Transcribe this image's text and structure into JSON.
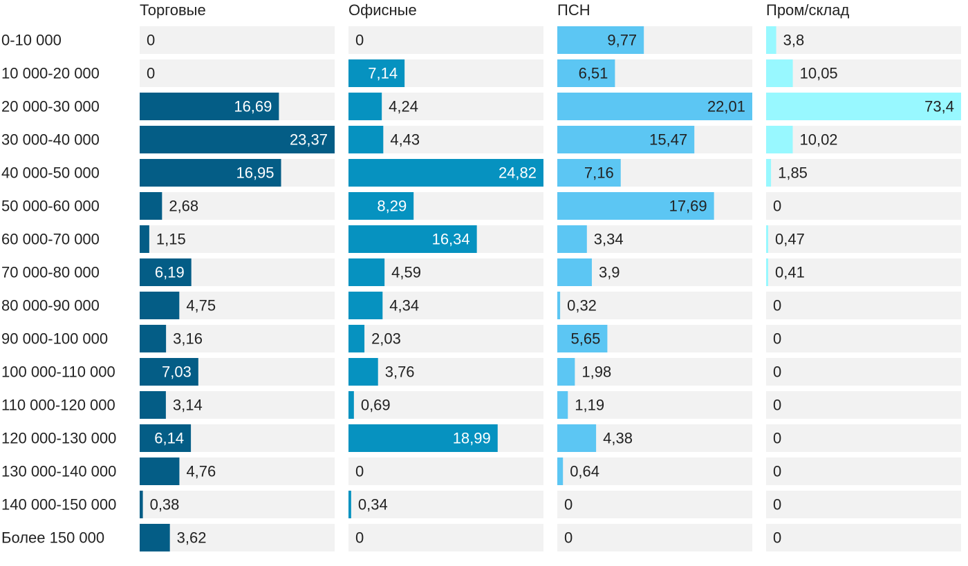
{
  "chart_data": {
    "type": "bar",
    "orientation": "horizontal",
    "layout": "small-multiples",
    "categories": [
      "0-10 000",
      "10 000-20 000",
      "20 000-30 000",
      "30 000-40 000",
      "40 000-50 000",
      "50 000-60 000",
      "60 000-70 000",
      "70 000-80 000",
      "80 000-90 000",
      "90 000-100 000",
      "100 000-110 000",
      "110 000-120 000",
      "120 000-130 000",
      "130 000-140 000",
      "140 000-150 000",
      "Более 150 000"
    ],
    "series": [
      {
        "name": "Торговые",
        "color": "#045d86",
        "value_labels": [
          "0",
          "0",
          "16,69",
          "23,37",
          "16,95",
          "2,68",
          "1,15",
          "6,19",
          "4,75",
          "3,16",
          "7,03",
          "3,14",
          "6,14",
          "4,76",
          "0,38",
          "3,62"
        ],
        "values": [
          0,
          0,
          16.69,
          23.37,
          16.95,
          2.68,
          1.15,
          6.19,
          4.75,
          3.16,
          7.03,
          3.14,
          6.14,
          4.76,
          0.38,
          3.62
        ],
        "max": 23.37
      },
      {
        "name": "Офисные",
        "color": "#0692c0",
        "value_labels": [
          "0",
          "7,14",
          "4,24",
          "4,43",
          "24,82",
          "8,29",
          "16,34",
          "4,59",
          "4,34",
          "2,03",
          "3,76",
          "0,69",
          "18,99",
          "0",
          "0,34",
          "0"
        ],
        "values": [
          0,
          7.14,
          4.24,
          4.43,
          24.82,
          8.29,
          16.34,
          4.59,
          4.34,
          2.03,
          3.76,
          0.69,
          18.99,
          0,
          0.34,
          0
        ],
        "max": 24.82
      },
      {
        "name": "ПСН",
        "color": "#5cc6f3",
        "value_labels": [
          "9,77",
          "6,51",
          "22,01",
          "15,47",
          "7,16",
          "17,69",
          "3,34",
          "3,9",
          "0,32",
          "5,65",
          "1,98",
          "1,19",
          "4,38",
          "0,64",
          "0",
          "0"
        ],
        "values": [
          9.77,
          6.51,
          22.01,
          15.47,
          7.16,
          17.69,
          3.34,
          3.9,
          0.32,
          5.65,
          1.98,
          1.19,
          4.38,
          0.64,
          0,
          0
        ],
        "max": 22.01
      },
      {
        "name": "Пром/склад",
        "color": "#98f8ff",
        "value_labels": [
          "3,8",
          "10,05",
          "73,4",
          "10,02",
          "1,85",
          "0",
          "0,47",
          "0,41",
          "0",
          "0",
          "0",
          "0",
          "0",
          "0",
          "0",
          "0"
        ],
        "values": [
          3.8,
          10.05,
          73.4,
          10.02,
          1.85,
          0,
          0.47,
          0.41,
          0,
          0,
          0,
          0,
          0,
          0,
          0,
          0
        ],
        "max": 73.4
      }
    ],
    "colors": {
      "track": "#f2f2f2",
      "text_dark": "#222222",
      "text_light": "#ffffff"
    }
  }
}
